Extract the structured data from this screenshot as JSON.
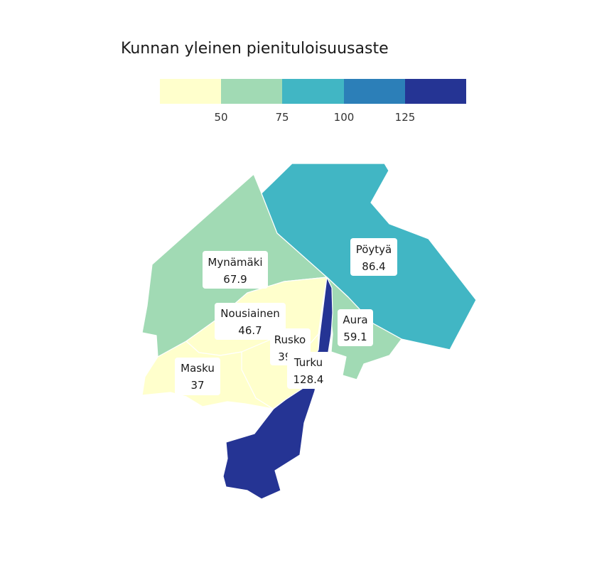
{
  "title": "Kunnan yleinen pienituloisuusaste",
  "legend": {
    "bins": [
      {
        "color": "#ffffcc"
      },
      {
        "color": "#a1dab4"
      },
      {
        "color": "#41b6c4"
      },
      {
        "color": "#2c7fb8"
      },
      {
        "color": "#253494"
      }
    ],
    "ticks": [
      "50",
      "75",
      "100",
      "125"
    ]
  },
  "regions": [
    {
      "id": "mynamaki",
      "name": "Mynämäki",
      "value": "67.9",
      "color": "#a1dab4"
    },
    {
      "id": "poytya",
      "name": "Pöytyä",
      "value": "86.4",
      "color": "#41b6c4"
    },
    {
      "id": "nousiainen",
      "name": "Nousiainen",
      "value": "46.7",
      "color": "#ffffcc"
    },
    {
      "id": "aura",
      "name": "Aura",
      "value": "59.1",
      "color": "#a1dab4"
    },
    {
      "id": "rusko",
      "name": "Rusko",
      "value": "39.3",
      "color": "#ffffcc"
    },
    {
      "id": "masku",
      "name": "Masku",
      "value": "37",
      "color": "#ffffcc"
    },
    {
      "id": "turku",
      "name": "Turku",
      "value": "128.4",
      "color": "#253494"
    }
  ]
}
